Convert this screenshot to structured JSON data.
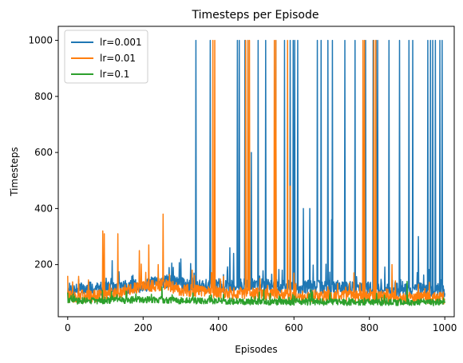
{
  "chart_data": {
    "type": "line",
    "title": "Timesteps per Episode",
    "xlabel": "Episodes",
    "ylabel": "Timesteps",
    "xlim": [
      -25,
      1025
    ],
    "ylim": [
      14,
      1050
    ],
    "x_ticks": [
      0,
      200,
      400,
      600,
      800,
      1000
    ],
    "y_ticks": [
      200,
      400,
      600,
      800,
      1000
    ],
    "x_tick_labels": [
      "0",
      "200",
      "400",
      "600",
      "800",
      "1000"
    ],
    "y_tick_labels": [
      "200",
      "400",
      "600",
      "800",
      "1000"
    ],
    "grid": false,
    "legend_position": "upper-left",
    "series": [
      {
        "name": "lr=0.001",
        "color": "#1f77b4",
        "base": [
          [
            0,
            110
          ],
          [
            100,
            115
          ],
          [
            200,
            125
          ],
          [
            260,
            140
          ],
          [
            300,
            130
          ],
          [
            400,
            125
          ],
          [
            500,
            125
          ],
          [
            600,
            120
          ],
          [
            700,
            120
          ],
          [
            800,
            115
          ],
          [
            900,
            110
          ],
          [
            1000,
            110
          ]
        ],
        "spikes": [
          [
            340,
            1000
          ],
          [
            378,
            1000
          ],
          [
            450,
            1000
          ],
          [
            455,
            1000
          ],
          [
            470,
            1000
          ],
          [
            478,
            1000
          ],
          [
            487,
            600
          ],
          [
            505,
            1000
          ],
          [
            525,
            1000
          ],
          [
            552,
            1000
          ],
          [
            575,
            1000
          ],
          [
            590,
            1000
          ],
          [
            598,
            1000
          ],
          [
            602,
            1000
          ],
          [
            610,
            1000
          ],
          [
            625,
            400
          ],
          [
            642,
            400
          ],
          [
            662,
            1000
          ],
          [
            672,
            1000
          ],
          [
            690,
            1000
          ],
          [
            702,
            1000
          ],
          [
            735,
            1000
          ],
          [
            762,
            1000
          ],
          [
            790,
            1000
          ],
          [
            810,
            1000
          ],
          [
            818,
            1000
          ],
          [
            822,
            1000
          ],
          [
            852,
            1000
          ],
          [
            880,
            1000
          ],
          [
            905,
            1000
          ],
          [
            915,
            1000
          ],
          [
            955,
            1000
          ],
          [
            962,
            1000
          ],
          [
            968,
            1000
          ],
          [
            975,
            1000
          ],
          [
            987,
            1000
          ],
          [
            993,
            1000
          ],
          [
            430,
            260
          ],
          [
            440,
            240
          ],
          [
            300,
            220
          ],
          [
            700,
            360
          ],
          [
            930,
            300
          ]
        ],
        "noise": 25,
        "seed": 7
      },
      {
        "name": "lr=0.01",
        "color": "#ff7f0e",
        "base": [
          [
            0,
            85
          ],
          [
            100,
            90
          ],
          [
            200,
            120
          ],
          [
            260,
            130
          ],
          [
            300,
            110
          ],
          [
            400,
            100
          ],
          [
            500,
            95
          ],
          [
            600,
            90
          ],
          [
            700,
            88
          ],
          [
            800,
            85
          ],
          [
            900,
            82
          ],
          [
            1000,
            80
          ]
        ],
        "spikes": [
          [
            0,
            160
          ],
          [
            93,
            320
          ],
          [
            97,
            310
          ],
          [
            133,
            310
          ],
          [
            190,
            250
          ],
          [
            215,
            270
          ],
          [
            253,
            380
          ],
          [
            385,
            1000
          ],
          [
            390,
            1000
          ],
          [
            472,
            1000
          ],
          [
            478,
            1000
          ],
          [
            482,
            1000
          ],
          [
            548,
            1000
          ],
          [
            552,
            1000
          ],
          [
            583,
            1000
          ],
          [
            590,
            480
          ],
          [
            783,
            1000
          ],
          [
            787,
            1000
          ],
          [
            812,
            1000
          ],
          [
            817,
            1000
          ],
          [
            240,
            200
          ],
          [
            330,
            180
          ],
          [
            600,
            170
          ],
          [
            860,
            200
          ],
          [
            930,
            130
          ]
        ],
        "noise": 22,
        "seed": 13
      },
      {
        "name": "lr=0.1",
        "color": "#2ca02c",
        "base": [
          [
            0,
            70
          ],
          [
            100,
            72
          ],
          [
            200,
            75
          ],
          [
            300,
            72
          ],
          [
            400,
            70
          ],
          [
            500,
            68
          ],
          [
            600,
            67
          ],
          [
            700,
            66
          ],
          [
            800,
            65
          ],
          [
            900,
            66
          ],
          [
            1000,
            65
          ]
        ],
        "spikes": [
          [
            0,
            100
          ],
          [
            250,
            120
          ],
          [
            520,
            110
          ],
          [
            900,
            140
          ]
        ],
        "noise": 12,
        "seed": 29
      }
    ]
  }
}
